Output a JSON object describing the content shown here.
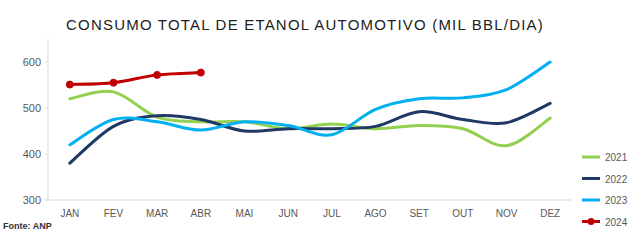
{
  "chart_data": {
    "type": "line",
    "title": "CONSUMO TOTAL DE ETANOL AUTOMOTIVO (MIL BBL/DIA)",
    "source": "Fonte: ANP",
    "categories": [
      "JAN",
      "FEV",
      "MAR",
      "ABR",
      "MAI",
      "JUN",
      "JUL",
      "AGO",
      "SET",
      "OUT",
      "NOV",
      "DEZ"
    ],
    "series": [
      {
        "name": "2021",
        "color": "#92d050",
        "values": [
          520,
          535,
          480,
          470,
          470,
          455,
          465,
          455,
          462,
          455,
          418,
          478
        ]
      },
      {
        "name": "2022",
        "color": "#1f3864",
        "values": [
          380,
          460,
          483,
          475,
          450,
          455,
          455,
          460,
          492,
          475,
          468,
          510
        ]
      },
      {
        "name": "2023",
        "color": "#00b0f0",
        "values": [
          420,
          475,
          470,
          452,
          470,
          462,
          442,
          497,
          520,
          522,
          540,
          600
        ]
      },
      {
        "name": "2024",
        "color": "#c00000",
        "marker": "circle",
        "values": [
          551,
          555,
          572,
          577,
          null,
          null,
          null,
          null,
          null,
          null,
          null,
          null
        ]
      }
    ],
    "ylim": [
      300,
      650
    ],
    "yticks": [
      300,
      400,
      500,
      600
    ],
    "grid": false,
    "legend": "right"
  }
}
